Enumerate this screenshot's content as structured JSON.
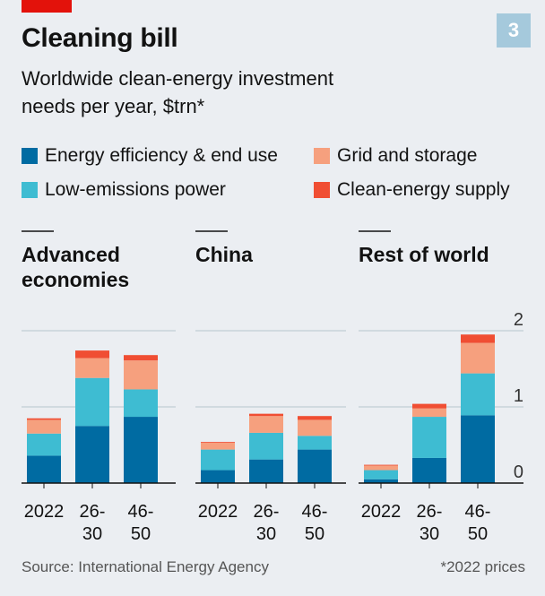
{
  "header": {
    "title": "Cleaning bill",
    "subtitle_line1": "Worldwide clean-energy investment",
    "subtitle_line2": "needs per year, $trn*",
    "chart_number": "3"
  },
  "legend": [
    {
      "label": "Energy efficiency & end use",
      "color": "#006ba2"
    },
    {
      "label": "Grid and storage",
      "color": "#f6a07e"
    },
    {
      "label": "Low-emissions power",
      "color": "#3ebcd2"
    },
    {
      "label": "Clean-energy supply",
      "color": "#f04e33"
    }
  ],
  "footer": {
    "source": "Source: International Energy Agency",
    "note": "*2022 prices"
  },
  "chart_data": {
    "type": "bar",
    "stacked": true,
    "ylim": [
      0,
      2
    ],
    "yticks": [
      "0",
      "1",
      "2"
    ],
    "categories": [
      [
        "2022"
      ],
      [
        "26-",
        "30"
      ],
      [
        "46-",
        "50"
      ]
    ],
    "panels": [
      {
        "title": [
          "Advanced",
          "economies"
        ],
        "series": [
          {
            "name": "Energy efficiency & end use",
            "values": [
              0.36,
              0.75,
              0.87
            ]
          },
          {
            "name": "Low-emissions power",
            "values": [
              0.29,
              0.63,
              0.36
            ]
          },
          {
            "name": "Grid and storage",
            "values": [
              0.18,
              0.26,
              0.38
            ]
          },
          {
            "name": "Clean-energy supply",
            "values": [
              0.02,
              0.1,
              0.07
            ]
          }
        ]
      },
      {
        "title": [
          "China"
        ],
        "series": [
          {
            "name": "Energy efficiency & end use",
            "values": [
              0.17,
              0.31,
              0.44
            ]
          },
          {
            "name": "Low-emissions power",
            "values": [
              0.27,
              0.35,
              0.18
            ]
          },
          {
            "name": "Grid and storage",
            "values": [
              0.09,
              0.22,
              0.21
            ]
          },
          {
            "name": "Clean-energy supply",
            "values": [
              0.01,
              0.03,
              0.05
            ]
          }
        ]
      },
      {
        "title": [
          "Rest of world"
        ],
        "series": [
          {
            "name": "Energy efficiency & end use",
            "values": [
              0.05,
              0.33,
              0.89
            ]
          },
          {
            "name": "Low-emissions power",
            "values": [
              0.12,
              0.54,
              0.55
            ]
          },
          {
            "name": "Grid and storage",
            "values": [
              0.06,
              0.11,
              0.4
            ]
          },
          {
            "name": "Clean-energy supply",
            "values": [
              0.01,
              0.06,
              0.11
            ]
          }
        ]
      }
    ]
  }
}
